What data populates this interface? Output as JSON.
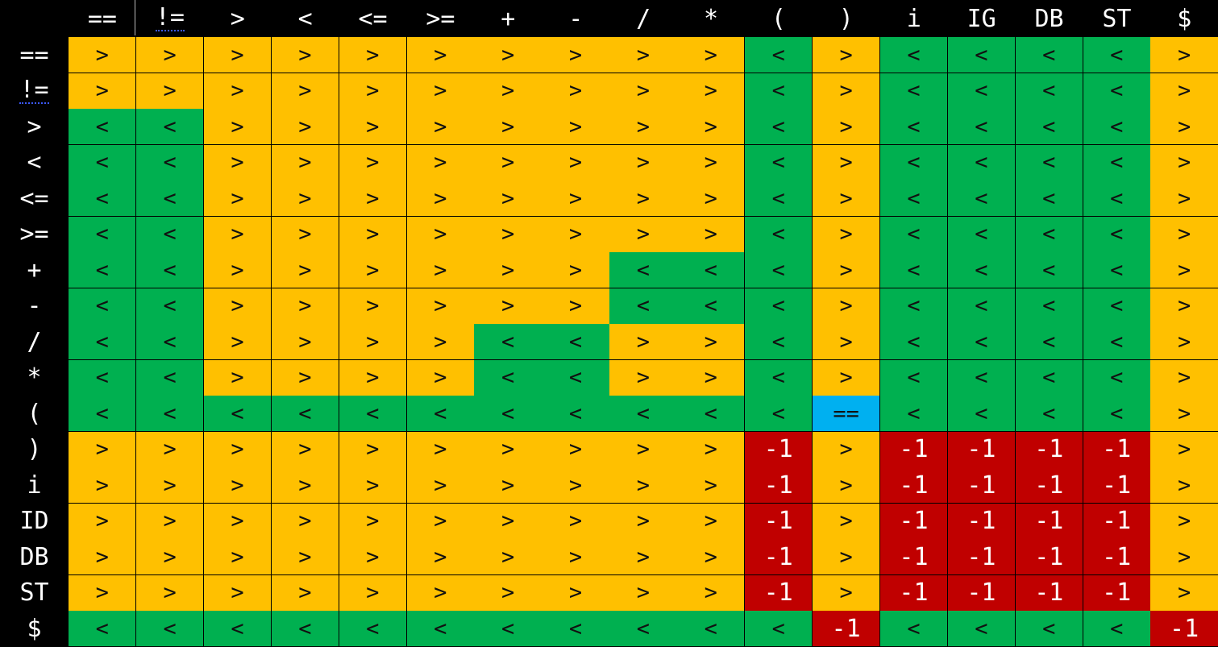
{
  "columns": [
    "==",
    "!=",
    ">",
    "<",
    "<=",
    ">=",
    "+",
    "-",
    "/",
    "*",
    "(",
    ")",
    "i",
    "IG",
    "DB",
    "ST",
    "$"
  ],
  "rows": [
    "==",
    "!=",
    ">",
    "<",
    "<=",
    ">=",
    "+",
    "-",
    "/",
    "*",
    "(",
    ")",
    "i",
    "ID",
    "DB",
    "ST",
    "$"
  ],
  "cells": [
    [
      ">",
      ">",
      ">",
      ">",
      ">",
      ">",
      ">",
      ">",
      ">",
      ">",
      "<",
      ">",
      "<",
      "<",
      "<",
      "<",
      ">"
    ],
    [
      ">",
      ">",
      ">",
      ">",
      ">",
      ">",
      ">",
      ">",
      ">",
      ">",
      "<",
      ">",
      "<",
      "<",
      "<",
      "<",
      ">"
    ],
    [
      "<",
      "<",
      ">",
      ">",
      ">",
      ">",
      ">",
      ">",
      ">",
      ">",
      "<",
      ">",
      "<",
      "<",
      "<",
      "<",
      ">"
    ],
    [
      "<",
      "<",
      ">",
      ">",
      ">",
      ">",
      ">",
      ">",
      ">",
      ">",
      "<",
      ">",
      "<",
      "<",
      "<",
      "<",
      ">"
    ],
    [
      "<",
      "<",
      ">",
      ">",
      ">",
      ">",
      ">",
      ">",
      ">",
      ">",
      "<",
      ">",
      "<",
      "<",
      "<",
      "<",
      ">"
    ],
    [
      "<",
      "<",
      ">",
      ">",
      ">",
      ">",
      ">",
      ">",
      ">",
      ">",
      "<",
      ">",
      "<",
      "<",
      "<",
      "<",
      ">"
    ],
    [
      "<",
      "<",
      ">",
      ">",
      ">",
      ">",
      ">",
      ">",
      "<",
      "<",
      "<",
      ">",
      "<",
      "<",
      "<",
      "<",
      ">"
    ],
    [
      "<",
      "<",
      ">",
      ">",
      ">",
      ">",
      ">",
      ">",
      "<",
      "<",
      "<",
      ">",
      "<",
      "<",
      "<",
      "<",
      ">"
    ],
    [
      "<",
      "<",
      ">",
      ">",
      ">",
      ">",
      "<",
      "<",
      ">",
      ">",
      "<",
      ">",
      "<",
      "<",
      "<",
      "<",
      ">"
    ],
    [
      "<",
      "<",
      ">",
      ">",
      ">",
      ">",
      "<",
      "<",
      ">",
      ">",
      "<",
      ">",
      "<",
      "<",
      "<",
      "<",
      ">"
    ],
    [
      "<",
      "<",
      "<",
      "<",
      "<",
      "<",
      "<",
      "<",
      "<",
      "<",
      "<",
      "==",
      "<",
      "<",
      "<",
      "<",
      ">"
    ],
    [
      ">",
      ">",
      ">",
      ">",
      ">",
      ">",
      ">",
      ">",
      ">",
      ">",
      "-1",
      ">",
      "-1",
      "-1",
      "-1",
      "-1",
      ">"
    ],
    [
      ">",
      ">",
      ">",
      ">",
      ">",
      ">",
      ">",
      ">",
      ">",
      ">",
      "-1",
      ">",
      "-1",
      "-1",
      "-1",
      "-1",
      ">"
    ],
    [
      ">",
      ">",
      ">",
      ">",
      ">",
      ">",
      ">",
      ">",
      ">",
      ">",
      "-1",
      ">",
      "-1",
      "-1",
      "-1",
      "-1",
      ">"
    ],
    [
      ">",
      ">",
      ">",
      ">",
      ">",
      ">",
      ">",
      ">",
      ">",
      ">",
      "-1",
      ">",
      "-1",
      "-1",
      "-1",
      "-1",
      ">"
    ],
    [
      ">",
      ">",
      ">",
      ">",
      ">",
      ">",
      ">",
      ">",
      ">",
      ">",
      "-1",
      ">",
      "-1",
      "-1",
      "-1",
      "-1",
      ">"
    ],
    [
      "<",
      "<",
      "<",
      "<",
      "<",
      "<",
      "<",
      "<",
      "<",
      "<",
      "<",
      "-1",
      "<",
      "<",
      "<",
      "<",
      "-1"
    ]
  ],
  "colors": {
    "greater": "#FFC000",
    "less": "#00B050",
    "equal": "#00B0F0",
    "error": "#C00000",
    "background": "#000000"
  }
}
